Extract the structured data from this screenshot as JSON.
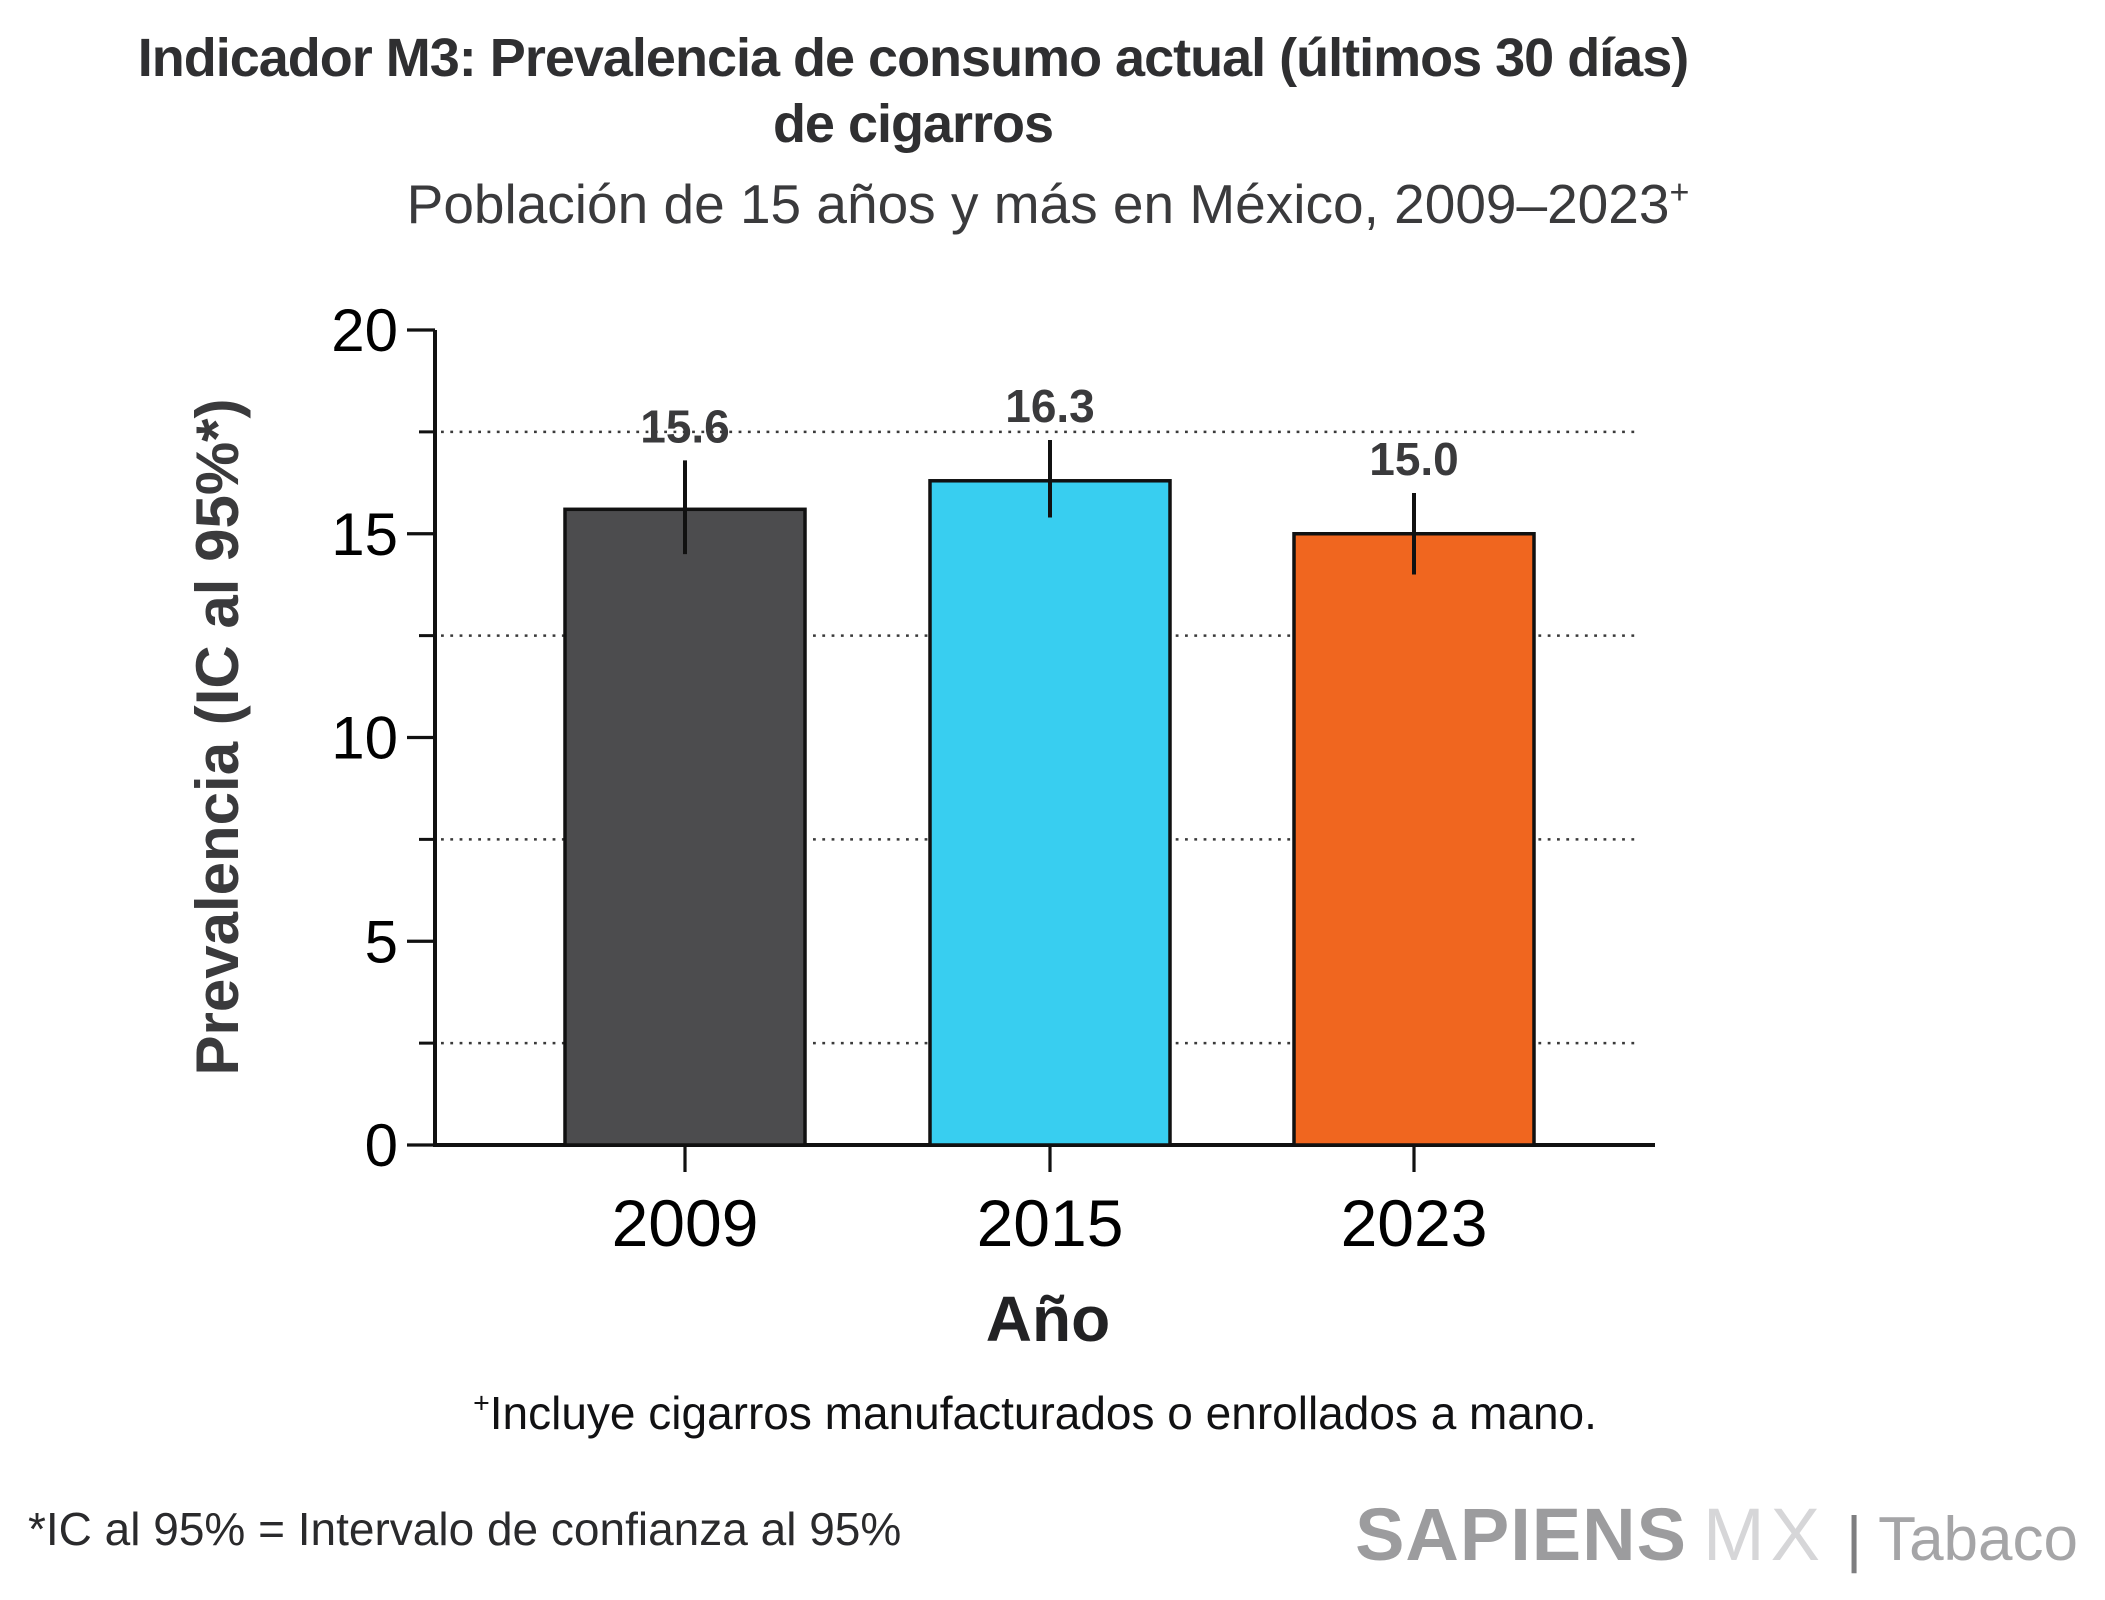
{
  "title": {
    "line1": "Indicador M3: Prevalencia de consumo actual (últimos 30 días)",
    "line2": "de cigarros"
  },
  "subtitle": {
    "text": "Población de 15 años y más en México, 2009–2023",
    "superscript": "+"
  },
  "chart_data": {
    "type": "bar",
    "categories": [
      "2009",
      "2015",
      "2023"
    ],
    "values": [
      15.6,
      16.3,
      15.0
    ],
    "value_labels": [
      "15.6",
      "16.3",
      "15.0"
    ],
    "ci_95": [
      [
        14.5,
        16.8
      ],
      [
        15.4,
        17.3
      ],
      [
        14.0,
        16.0
      ]
    ],
    "bar_colors": [
      "#4c4c4e",
      "#38cef0",
      "#f0661f"
    ],
    "bar_edge_color": "#111111",
    "error_bar_color": "#111111",
    "xlabel": "Año",
    "ylabel": "Prevalencia (IC al 95%*)",
    "ylim": [
      0,
      20
    ],
    "yticks_major": [
      0,
      5,
      10,
      15,
      20
    ],
    "ytick_labels": [
      "0",
      "5",
      "10",
      "15",
      "20"
    ],
    "yticks_minor_gridlines": [
      2.5,
      7.5,
      12.5,
      17.5
    ],
    "grid": "horizontal dotted lines at minor ticks",
    "legend_position": "none"
  },
  "footnote_plus": {
    "superscript": "+",
    "text": "Incluye cigarros manufacturados o enrollados a mano."
  },
  "footnote_ci": "*IC al 95% = Intervalo de confianza al 95%",
  "logo": {
    "brand": "SAPIENS",
    "suffix": "MX",
    "divider": "|",
    "product": "Tabaco"
  },
  "colors": {
    "background": "#ffffff",
    "title_text": "#2f2f31",
    "axis_and_ticks": "#111111",
    "tick_label_text": "#000000",
    "data_label_text": "#3a3a3c",
    "gridline_dots": "#3a3a3a",
    "bar_2009": "#4c4c4e",
    "bar_2015": "#38cef0",
    "bar_2023": "#f0661f",
    "logo_brand_gray": "#9c9c9e",
    "logo_suffix_gray": "#d6d6d8",
    "logo_product_gray": "#a5a5a7"
  }
}
